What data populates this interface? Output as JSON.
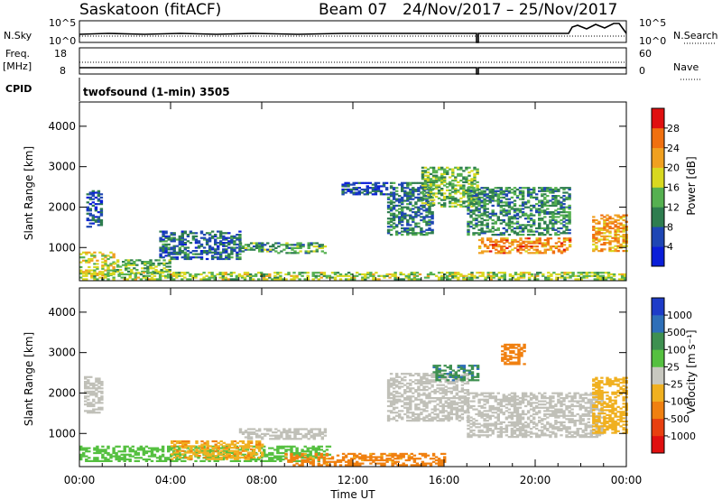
{
  "header": {
    "station": "Saskatoon (fitACF)",
    "beam": "Beam 07",
    "dates": "24/Nov/2017 – 25/Nov/2017"
  },
  "status_panel": {
    "nsky_label": "N.Sky",
    "nsky_ticks": [
      "10^5",
      "10^0"
    ],
    "nsearch_label": "N.Search",
    "nsearch_ticks": [
      "10^5",
      "10^0"
    ],
    "freq_label": "Freq.",
    "freq_unit": "[MHz]",
    "freq_ticks": [
      "18",
      "8"
    ],
    "nave_label": "Nave",
    "nave_ticks": [
      "60",
      "0"
    ],
    "cpid_label": "CPID",
    "cpid_text": "twofsound (1-min) 3505"
  },
  "chart_data": [
    {
      "type": "heatmap",
      "panel": "power",
      "ylabel": "Slant Range [km]",
      "ylim": [
        180,
        4600
      ],
      "yticks": [
        1000,
        2000,
        3000,
        4000
      ],
      "colorbar_label": "Power [dB]",
      "colorbar_ticks": [
        4,
        8,
        12,
        16,
        20,
        24,
        28
      ],
      "colors": [
        "#0a1ed8",
        "#1e46b4",
        "#2e7d4f",
        "#55b050",
        "#d8d820",
        "#f0a020",
        "#f07010",
        "#e01010"
      ],
      "regions": [
        {
          "t": [
            0.3,
            1.0
          ],
          "r": [
            1500,
            2400
          ],
          "db": 7
        },
        {
          "t": [
            0.0,
            1.5
          ],
          "r": [
            300,
            900
          ],
          "db": 18
        },
        {
          "t": [
            1.5,
            4.0
          ],
          "r": [
            350,
            700
          ],
          "db": 14
        },
        {
          "t": [
            3.5,
            7.0
          ],
          "r": [
            700,
            1400
          ],
          "db": 8
        },
        {
          "t": [
            7.0,
            10.8
          ],
          "r": [
            850,
            1100
          ],
          "db": 12
        },
        {
          "t": [
            11.5,
            13.5
          ],
          "r": [
            2300,
            2600
          ],
          "db": 6
        },
        {
          "t": [
            13.5,
            15.5
          ],
          "r": [
            1300,
            2600
          ],
          "db": 9
        },
        {
          "t": [
            15.0,
            17.5
          ],
          "r": [
            2000,
            3000
          ],
          "db": 14
        },
        {
          "t": [
            17.0,
            21.5
          ],
          "r": [
            1300,
            2500
          ],
          "db": 11
        },
        {
          "t": [
            17.5,
            21.5
          ],
          "r": [
            850,
            1250
          ],
          "db": 24
        },
        {
          "t": [
            22.5,
            24.0
          ],
          "r": [
            900,
            1800
          ],
          "db": 22
        },
        {
          "t": [
            0.0,
            24.0
          ],
          "r": [
            200,
            400
          ],
          "db": 16
        }
      ]
    },
    {
      "type": "heatmap",
      "panel": "velocity",
      "ylabel": "Slant Range [km]",
      "xlabel": "Time UT",
      "xticks": [
        "00:00",
        "04:00",
        "08:00",
        "12:00",
        "16:00",
        "20:00",
        "00:00"
      ],
      "xlim_hours": [
        0,
        24
      ],
      "ylim": [
        180,
        4600
      ],
      "yticks": [
        1000,
        2000,
        3000,
        4000
      ],
      "colorbar_label": "Velocity [m s⁻¹]",
      "colorbar_ticks": [
        "1000",
        "500",
        "100",
        "25",
        "-25",
        "-100",
        "-500",
        "-1000"
      ],
      "colors": [
        "#1e3cc8",
        "#2e6fb8",
        "#3e9050",
        "#55c040",
        "#c8c8c0",
        "#f0b020",
        "#f08010",
        "#e84010",
        "#e01010"
      ],
      "ground_scatter_color": "#c0c0b8",
      "regions": [
        {
          "t": [
            0.2,
            1.0
          ],
          "r": [
            1500,
            2400
          ],
          "v": "gs"
        },
        {
          "t": [
            0.0,
            11.0
          ],
          "r": [
            300,
            700
          ],
          "v": 60
        },
        {
          "t": [
            7.0,
            10.8
          ],
          "r": [
            850,
            1100
          ],
          "v": "gs"
        },
        {
          "t": [
            4.0,
            8.0
          ],
          "r": [
            350,
            800
          ],
          "v": -80
        },
        {
          "t": [
            9.0,
            16.0
          ],
          "r": [
            200,
            500
          ],
          "v": -150
        },
        {
          "t": [
            13.5,
            17.0
          ],
          "r": [
            1300,
            2500
          ],
          "v": "gs"
        },
        {
          "t": [
            15.5,
            17.5
          ],
          "r": [
            2300,
            2700
          ],
          "v": 400
        },
        {
          "t": [
            17.0,
            23.0
          ],
          "r": [
            900,
            2000
          ],
          "v": "gs"
        },
        {
          "t": [
            18.5,
            19.5
          ],
          "r": [
            2700,
            3200
          ],
          "v": -200
        },
        {
          "t": [
            22.5,
            24.0
          ],
          "r": [
            1000,
            2400
          ],
          "v": -60
        }
      ]
    }
  ]
}
